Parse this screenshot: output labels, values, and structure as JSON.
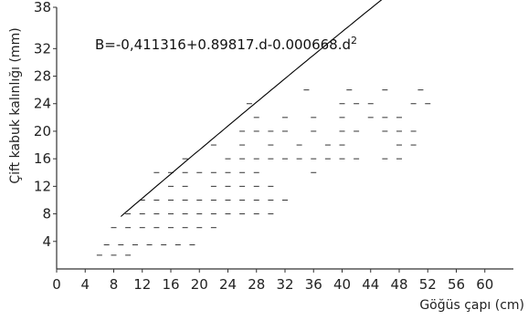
{
  "chart_data": {
    "type": "scatter",
    "title": "",
    "xlabel": "Göğüs çapı (cm)",
    "ylabel": "Çift kabuk kalınlığı (mm)",
    "equation_label": "B=-0,411316+0.89817.d-0.000668.d",
    "equation_superscript": "2",
    "xlim": [
      0,
      64
    ],
    "ylim": [
      0,
      38
    ],
    "x_ticks": [
      0,
      4,
      8,
      12,
      16,
      20,
      24,
      28,
      32,
      36,
      40,
      44,
      48,
      52,
      56,
      60
    ],
    "x_tick_labels": [
      "0",
      "4",
      "8",
      "12",
      "16",
      "20",
      "24",
      "28",
      "32",
      "36",
      "40",
      "44",
      "48",
      "52",
      "56",
      "60"
    ],
    "y_ticks": [
      4,
      8,
      12,
      16,
      20,
      24,
      28,
      32,
      38
    ],
    "y_tick_labels": [
      "4",
      "8",
      "12",
      "16",
      "20",
      "24",
      "28",
      "32",
      "38"
    ],
    "grid": false,
    "colors": {
      "axis": "#333333",
      "points": "#333333",
      "curve": "#000000"
    },
    "points": [
      {
        "x": 6,
        "y": 2
      },
      {
        "x": 8,
        "y": 2
      },
      {
        "x": 10,
        "y": 2
      },
      {
        "x": 7,
        "y": 3.5
      },
      {
        "x": 9,
        "y": 3.5
      },
      {
        "x": 11,
        "y": 3.5
      },
      {
        "x": 13,
        "y": 3.5
      },
      {
        "x": 15,
        "y": 3.5
      },
      {
        "x": 17,
        "y": 3.5
      },
      {
        "x": 19,
        "y": 3.5
      },
      {
        "x": 8,
        "y": 6
      },
      {
        "x": 10,
        "y": 6
      },
      {
        "x": 12,
        "y": 6
      },
      {
        "x": 14,
        "y": 6
      },
      {
        "x": 16,
        "y": 6
      },
      {
        "x": 18,
        "y": 6
      },
      {
        "x": 20,
        "y": 6
      },
      {
        "x": 22,
        "y": 6
      },
      {
        "x": 10,
        "y": 8
      },
      {
        "x": 12,
        "y": 8
      },
      {
        "x": 14,
        "y": 8
      },
      {
        "x": 16,
        "y": 8
      },
      {
        "x": 18,
        "y": 8
      },
      {
        "x": 20,
        "y": 8
      },
      {
        "x": 22,
        "y": 8
      },
      {
        "x": 24,
        "y": 8
      },
      {
        "x": 26,
        "y": 8
      },
      {
        "x": 28,
        "y": 8
      },
      {
        "x": 30,
        "y": 8
      },
      {
        "x": 12,
        "y": 10
      },
      {
        "x": 14,
        "y": 10
      },
      {
        "x": 16,
        "y": 10
      },
      {
        "x": 18,
        "y": 10
      },
      {
        "x": 20,
        "y": 10
      },
      {
        "x": 22,
        "y": 10
      },
      {
        "x": 24,
        "y": 10
      },
      {
        "x": 26,
        "y": 10
      },
      {
        "x": 28,
        "y": 10
      },
      {
        "x": 30,
        "y": 10
      },
      {
        "x": 32,
        "y": 10
      },
      {
        "x": 16,
        "y": 12
      },
      {
        "x": 18,
        "y": 12
      },
      {
        "x": 22,
        "y": 12
      },
      {
        "x": 24,
        "y": 12
      },
      {
        "x": 26,
        "y": 12
      },
      {
        "x": 28,
        "y": 12
      },
      {
        "x": 30,
        "y": 12
      },
      {
        "x": 14,
        "y": 14
      },
      {
        "x": 16,
        "y": 14
      },
      {
        "x": 18,
        "y": 14
      },
      {
        "x": 20,
        "y": 14
      },
      {
        "x": 22,
        "y": 14
      },
      {
        "x": 24,
        "y": 14
      },
      {
        "x": 26,
        "y": 14
      },
      {
        "x": 28,
        "y": 14
      },
      {
        "x": 36,
        "y": 14
      },
      {
        "x": 18,
        "y": 16
      },
      {
        "x": 24,
        "y": 16
      },
      {
        "x": 26,
        "y": 16
      },
      {
        "x": 28,
        "y": 16
      },
      {
        "x": 30,
        "y": 16
      },
      {
        "x": 32,
        "y": 16
      },
      {
        "x": 34,
        "y": 16
      },
      {
        "x": 36,
        "y": 16
      },
      {
        "x": 38,
        "y": 16
      },
      {
        "x": 40,
        "y": 16
      },
      {
        "x": 42,
        "y": 16
      },
      {
        "x": 46,
        "y": 16
      },
      {
        "x": 48,
        "y": 16
      },
      {
        "x": 22,
        "y": 18
      },
      {
        "x": 26,
        "y": 18
      },
      {
        "x": 30,
        "y": 18
      },
      {
        "x": 34,
        "y": 18
      },
      {
        "x": 38,
        "y": 18
      },
      {
        "x": 40,
        "y": 18
      },
      {
        "x": 48,
        "y": 18
      },
      {
        "x": 50,
        "y": 18
      },
      {
        "x": 26,
        "y": 20
      },
      {
        "x": 28,
        "y": 20
      },
      {
        "x": 30,
        "y": 20
      },
      {
        "x": 32,
        "y": 20
      },
      {
        "x": 36,
        "y": 20
      },
      {
        "x": 40,
        "y": 20
      },
      {
        "x": 42,
        "y": 20
      },
      {
        "x": 46,
        "y": 20
      },
      {
        "x": 48,
        "y": 20
      },
      {
        "x": 50,
        "y": 20
      },
      {
        "x": 28,
        "y": 22
      },
      {
        "x": 32,
        "y": 22
      },
      {
        "x": 36,
        "y": 22
      },
      {
        "x": 40,
        "y": 22
      },
      {
        "x": 44,
        "y": 22
      },
      {
        "x": 46,
        "y": 22
      },
      {
        "x": 48,
        "y": 22
      },
      {
        "x": 40,
        "y": 24
      },
      {
        "x": 42,
        "y": 24
      },
      {
        "x": 44,
        "y": 24
      },
      {
        "x": 50,
        "y": 24
      },
      {
        "x": 52,
        "y": 24
      },
      {
        "x": 27,
        "y": 24
      },
      {
        "x": 35,
        "y": 26
      },
      {
        "x": 41,
        "y": 26
      },
      {
        "x": 46,
        "y": 26
      },
      {
        "x": 51,
        "y": 26
      }
    ],
    "regression": {
      "b0": -0.411316,
      "b1": 0.89817,
      "b2": -0.000668,
      "x_from": 9,
      "x_to": 61
    }
  }
}
